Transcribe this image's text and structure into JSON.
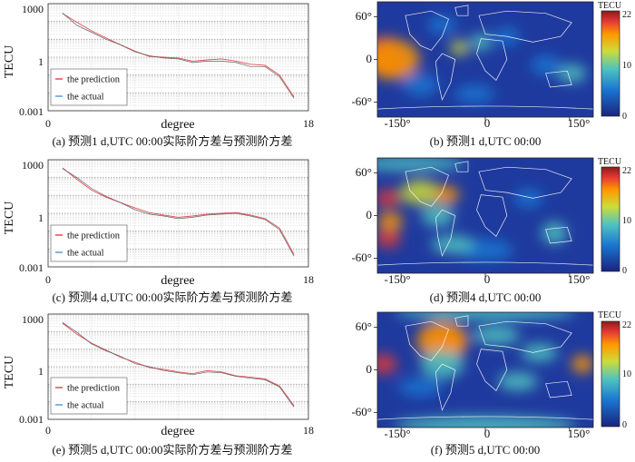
{
  "panels": [
    {
      "caption": "(a) 预测1 d,UTC 00:00实际阶方差与预测阶方差"
    },
    {
      "caption": "(b) 预测1 d,UTC 00:00"
    },
    {
      "caption": "(c) 预测4 d,UTC 00:00实际阶方差与预测阶方差"
    },
    {
      "caption": "(d) 预测4 d,UTC 00:00"
    },
    {
      "caption": "(e) 预测5 d,UTC 00:00实际阶方差与预测阶方差"
    },
    {
      "caption": "(f) 预测5 d,UTC 00:00"
    }
  ],
  "colors": {
    "prediction": "#e3303a",
    "actual": "#3b8fd6",
    "map_low": "#1a237e",
    "map_high": "#8b1a1a"
  },
  "chart_data": [
    {
      "type": "line",
      "xlabel": "degree",
      "ylabel": "TECU",
      "yscale": "log",
      "ylim": [
        0.001,
        1000
      ],
      "yticks": [
        "1000",
        "1",
        "0.001"
      ],
      "xlim": [
        0,
        18
      ],
      "xticks": [
        "0",
        "18"
      ],
      "legend_position": "bottom-left",
      "series": [
        {
          "name": "the prediction",
          "x": [
            1,
            2,
            3,
            4,
            5,
            6,
            7,
            8,
            9,
            10,
            11,
            12,
            13,
            14,
            15,
            16,
            17
          ],
          "values": [
            280,
            90,
            30,
            12,
            5,
            2.2,
            1.1,
            1.0,
            0.9,
            0.6,
            0.7,
            0.8,
            0.6,
            0.4,
            0.35,
            0.1,
            0.006
          ]
        },
        {
          "name": "the actual",
          "x": [
            1,
            2,
            3,
            4,
            5,
            6,
            7,
            8,
            9,
            10,
            11,
            12,
            13,
            14,
            15,
            16,
            17
          ],
          "values": [
            300,
            60,
            25,
            10,
            5,
            2.0,
            1.2,
            0.9,
            0.8,
            0.5,
            0.6,
            0.6,
            0.5,
            0.3,
            0.3,
            0.08,
            0.005
          ]
        }
      ]
    },
    {
      "type": "heatmap",
      "colorbar_title": "TECU",
      "colorbar_ticks": [
        "22",
        "10",
        "0"
      ],
      "xticks": [
        "-150°",
        "0",
        "150°"
      ],
      "yticks": [
        "60°",
        "0",
        "-60°"
      ]
    },
    {
      "type": "line",
      "xlabel": "degree",
      "ylabel": "TECU",
      "yscale": "log",
      "ylim": [
        0.001,
        1000
      ],
      "yticks": [
        "1000",
        "1",
        "0.001"
      ],
      "xlim": [
        0,
        18
      ],
      "xticks": [
        "0",
        "18"
      ],
      "legend_position": "bottom-left",
      "series": [
        {
          "name": "the prediction",
          "x": [
            1,
            2,
            3,
            4,
            5,
            6,
            7,
            8,
            9,
            10,
            11,
            12,
            13,
            14,
            15,
            16,
            17
          ],
          "values": [
            350,
            80,
            20,
            8,
            4,
            2.0,
            1.1,
            0.8,
            0.6,
            0.7,
            0.9,
            1.0,
            1.1,
            0.8,
            0.5,
            0.15,
            0.005
          ]
        },
        {
          "name": "the actual",
          "x": [
            1,
            2,
            3,
            4,
            5,
            6,
            7,
            8,
            9,
            10,
            11,
            12,
            13,
            14,
            15,
            16,
            17
          ],
          "values": [
            320,
            100,
            25,
            9,
            4,
            1.6,
            0.9,
            0.7,
            0.5,
            0.6,
            0.8,
            0.9,
            1.0,
            0.7,
            0.45,
            0.12,
            0.004
          ]
        }
      ]
    },
    {
      "type": "heatmap",
      "colorbar_title": "TECU",
      "colorbar_ticks": [
        "22",
        "10",
        "0"
      ],
      "xticks": [
        "-150°",
        "0",
        "150°"
      ],
      "yticks": [
        "60°",
        "0",
        "-60°"
      ]
    },
    {
      "type": "line",
      "xlabel": "degree",
      "ylabel": "TECU",
      "yscale": "log",
      "ylim": [
        0.001,
        1000
      ],
      "yticks": [
        "1000",
        "1",
        "0.001"
      ],
      "xlim": [
        0,
        18
      ],
      "xticks": [
        "0",
        "18"
      ],
      "legend_position": "bottom-left",
      "series": [
        {
          "name": "the prediction",
          "x": [
            1,
            2,
            3,
            4,
            5,
            6,
            7,
            8,
            9,
            10,
            11,
            12,
            13,
            14,
            15,
            16,
            17
          ],
          "values": [
            300,
            70,
            22,
            9,
            3.5,
            1.8,
            0.9,
            0.7,
            0.5,
            0.4,
            0.6,
            0.5,
            0.3,
            0.25,
            0.2,
            0.08,
            0.006
          ]
        },
        {
          "name": "the actual",
          "x": [
            1,
            2,
            3,
            4,
            5,
            6,
            7,
            8,
            9,
            10,
            11,
            12,
            13,
            14,
            15,
            16,
            17
          ],
          "values": [
            330,
            90,
            20,
            8,
            4.0,
            1.5,
            1.0,
            0.6,
            0.45,
            0.35,
            0.5,
            0.45,
            0.28,
            0.22,
            0.18,
            0.07,
            0.005
          ]
        }
      ]
    },
    {
      "type": "heatmap",
      "colorbar_title": "TECU",
      "colorbar_ticks": [
        "22",
        "10",
        "0"
      ],
      "xticks": [
        "-150°",
        "0",
        "150°"
      ],
      "yticks": [
        "60°",
        "0",
        "-60°"
      ]
    }
  ]
}
